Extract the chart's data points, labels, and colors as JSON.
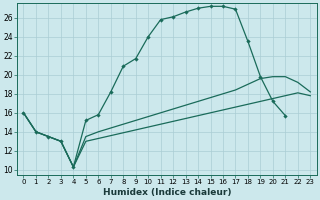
{
  "xlabel": "Humidex (Indice chaleur)",
  "bg_color": "#cce8ec",
  "grid_color": "#aacdd4",
  "line_color": "#1a6b5a",
  "x_ticks": [
    0,
    1,
    2,
    3,
    4,
    5,
    6,
    7,
    8,
    9,
    10,
    11,
    12,
    13,
    14,
    15,
    16,
    17,
    18,
    19,
    20,
    21,
    22,
    23
  ],
  "y_ticks": [
    10,
    12,
    14,
    16,
    18,
    20,
    22,
    24,
    26
  ],
  "xlim": [
    -0.5,
    23.5
  ],
  "ylim": [
    9.5,
    27.5
  ],
  "line1_x": [
    0,
    1,
    2,
    3,
    4,
    5,
    6,
    7,
    8,
    9,
    10,
    11,
    12,
    13,
    14,
    15,
    16,
    17,
    18,
    19,
    20,
    21
  ],
  "line1_y": [
    16.0,
    14.0,
    13.5,
    13.0,
    10.3,
    15.2,
    15.8,
    18.2,
    20.9,
    21.7,
    24.0,
    25.8,
    26.1,
    26.6,
    27.0,
    27.2,
    27.2,
    26.9,
    23.5,
    19.8,
    17.2,
    15.7
  ],
  "line2_x": [
    0,
    1,
    2,
    3,
    4,
    5,
    6,
    7,
    8,
    9,
    10,
    11,
    12,
    13,
    14,
    15,
    16,
    17,
    18,
    19,
    20,
    21,
    22,
    23
  ],
  "line2_y": [
    16.0,
    14.0,
    13.5,
    13.0,
    10.3,
    13.5,
    14.0,
    14.4,
    14.8,
    15.2,
    15.6,
    16.0,
    16.4,
    16.8,
    17.2,
    17.6,
    18.0,
    18.4,
    19.0,
    19.6,
    19.8,
    19.8,
    19.2,
    18.2
  ],
  "line3_x": [
    0,
    1,
    2,
    3,
    4,
    5,
    6,
    7,
    8,
    9,
    10,
    11,
    12,
    13,
    14,
    15,
    16,
    17,
    18,
    19,
    20,
    21,
    22,
    23
  ],
  "line3_y": [
    16.0,
    14.0,
    13.5,
    13.0,
    10.3,
    13.0,
    13.3,
    13.6,
    13.9,
    14.2,
    14.5,
    14.8,
    15.1,
    15.4,
    15.7,
    16.0,
    16.3,
    16.6,
    16.9,
    17.2,
    17.5,
    17.8,
    18.1,
    17.8
  ]
}
